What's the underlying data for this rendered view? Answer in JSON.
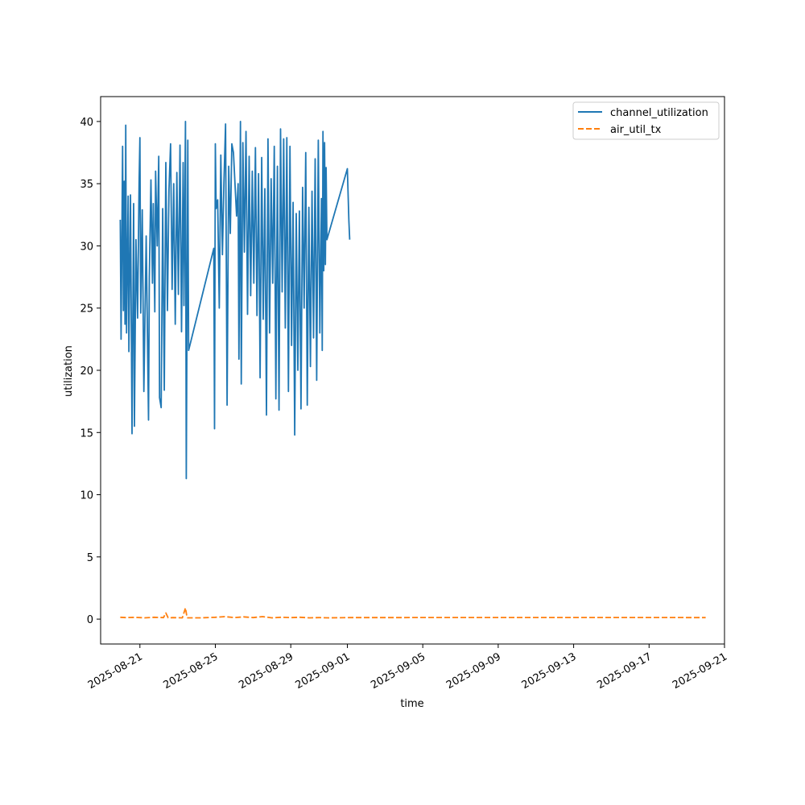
{
  "chart_data": {
    "type": "line",
    "title": "",
    "xlabel": "time",
    "ylabel": "utilization",
    "x_is_date": true,
    "xlim": [
      "2025-08-18T22:00",
      "2025-09-21T00:00"
    ],
    "ylim": [
      -2,
      42
    ],
    "x_ticks": [
      "2025-08-21",
      "2025-08-25",
      "2025-08-29",
      "2025-09-01",
      "2025-09-05",
      "2025-09-09",
      "2025-09-13",
      "2025-09-17",
      "2025-09-21"
    ],
    "y_ticks": [
      "0",
      "5",
      "10",
      "15",
      "20",
      "25",
      "30",
      "35",
      "40"
    ],
    "grid": false,
    "legend_position": "top-right",
    "series": [
      {
        "name": "channel_utilization",
        "color": "#1f77b4",
        "dash": "solid",
        "points": [
          [
            "2025-08-19T23:00",
            32.1
          ],
          [
            "2025-08-20T00:00",
            22.5
          ],
          [
            "2025-08-20T02:00",
            38.0
          ],
          [
            "2025-08-20T03:00",
            24.8
          ],
          [
            "2025-08-20T04:00",
            35.2
          ],
          [
            "2025-08-20T05:00",
            23.7
          ],
          [
            "2025-08-20T06:00",
            39.7
          ],
          [
            "2025-08-20T07:00",
            23.0
          ],
          [
            "2025-08-20T09:00",
            34.0
          ],
          [
            "2025-08-20T10:00",
            21.5
          ],
          [
            "2025-08-20T12:00",
            34.1
          ],
          [
            "2025-08-20T14:00",
            14.9
          ],
          [
            "2025-08-20T16:00",
            33.4
          ],
          [
            "2025-08-20T17:00",
            15.5
          ],
          [
            "2025-08-20T19:00",
            30.5
          ],
          [
            "2025-08-20T21:00",
            24.2
          ],
          [
            "2025-08-20T23:00",
            35.1
          ],
          [
            "2025-08-21T00:00",
            38.7
          ],
          [
            "2025-08-21T01:00",
            24.6
          ],
          [
            "2025-08-21T03:00",
            32.9
          ],
          [
            "2025-08-21T05:00",
            18.3
          ],
          [
            "2025-08-21T08:00",
            30.8
          ],
          [
            "2025-08-21T11:00",
            16.0
          ],
          [
            "2025-08-21T12:00",
            27.5
          ],
          [
            "2025-08-21T14:00",
            35.3
          ],
          [
            "2025-08-21T16:00",
            27.0
          ],
          [
            "2025-08-21T17:00",
            33.4
          ],
          [
            "2025-08-21T19:00",
            24.7
          ],
          [
            "2025-08-21T20:00",
            36.0
          ],
          [
            "2025-08-21T22:00",
            30.0
          ],
          [
            "2025-08-22T00:00",
            37.2
          ],
          [
            "2025-08-22T01:00",
            17.8
          ],
          [
            "2025-08-22T03:00",
            17.0
          ],
          [
            "2025-08-22T05:00",
            33.0
          ],
          [
            "2025-08-22T07:00",
            18.4
          ],
          [
            "2025-08-22T09:00",
            36.7
          ],
          [
            "2025-08-22T11:00",
            24.8
          ],
          [
            "2025-08-22T13:00",
            34.5
          ],
          [
            "2025-08-22T15:00",
            38.2
          ],
          [
            "2025-08-22T17:00",
            26.5
          ],
          [
            "2025-08-22T19:00",
            35.0
          ],
          [
            "2025-08-22T21:00",
            23.7
          ],
          [
            "2025-08-22T23:00",
            35.9
          ],
          [
            "2025-08-23T01:00",
            26.1
          ],
          [
            "2025-08-23T03:00",
            38.1
          ],
          [
            "2025-08-23T05:00",
            23.1
          ],
          [
            "2025-08-23T07:00",
            36.7
          ],
          [
            "2025-08-23T08:00",
            25.2
          ],
          [
            "2025-08-23T10:00",
            40.0
          ],
          [
            "2025-08-23T11:00",
            11.3
          ],
          [
            "2025-08-23T13:00",
            38.5
          ],
          [
            "2025-08-23T14:00",
            21.6
          ],
          [
            "2025-08-24T22:00",
            29.8
          ],
          [
            "2025-08-24T23:00",
            15.3
          ],
          [
            "2025-08-25T00:00",
            38.2
          ],
          [
            "2025-08-25T01:00",
            33.0
          ],
          [
            "2025-08-25T03:00",
            33.7
          ],
          [
            "2025-08-25T05:00",
            25.0
          ],
          [
            "2025-08-25T07:00",
            37.3
          ],
          [
            "2025-08-25T09:00",
            29.3
          ],
          [
            "2025-08-25T11:00",
            35.2
          ],
          [
            "2025-08-25T13:00",
            39.8
          ],
          [
            "2025-08-25T15:00",
            17.2
          ],
          [
            "2025-08-25T17:00",
            36.4
          ],
          [
            "2025-08-25T19:00",
            31.0
          ],
          [
            "2025-08-25T21:00",
            38.2
          ],
          [
            "2025-08-25T23:00",
            37.5
          ],
          [
            "2025-08-26T03:00",
            32.4
          ],
          [
            "2025-08-26T05:00",
            35.0
          ],
          [
            "2025-08-26T06:00",
            20.9
          ],
          [
            "2025-08-26T08:00",
            40.0
          ],
          [
            "2025-08-26T09:00",
            18.9
          ],
          [
            "2025-08-26T11:00",
            38.3
          ],
          [
            "2025-08-26T13:00",
            29.5
          ],
          [
            "2025-08-26T15:00",
            39.2
          ],
          [
            "2025-08-26T17:00",
            24.5
          ],
          [
            "2025-08-26T19:00",
            37.2
          ],
          [
            "2025-08-26T21:00",
            26.0
          ],
          [
            "2025-08-26T23:00",
            36.0
          ],
          [
            "2025-08-27T01:00",
            27.0
          ],
          [
            "2025-08-27T03:00",
            37.9
          ],
          [
            "2025-08-27T05:00",
            24.4
          ],
          [
            "2025-08-27T07:00",
            35.8
          ],
          [
            "2025-08-27T09:00",
            19.4
          ],
          [
            "2025-08-27T11:00",
            37.1
          ],
          [
            "2025-08-27T13:00",
            24.1
          ],
          [
            "2025-08-27T15:00",
            34.6
          ],
          [
            "2025-08-27T17:00",
            16.4
          ],
          [
            "2025-08-27T19:00",
            38.6
          ],
          [
            "2025-08-27T21:00",
            23.0
          ],
          [
            "2025-08-27T23:00",
            35.4
          ],
          [
            "2025-08-28T01:00",
            27.0
          ],
          [
            "2025-08-28T03:00",
            38.0
          ],
          [
            "2025-08-28T05:00",
            17.7
          ],
          [
            "2025-08-28T07:00",
            36.4
          ],
          [
            "2025-08-28T09:00",
            16.8
          ],
          [
            "2025-08-28T11:00",
            39.4
          ],
          [
            "2025-08-28T13:00",
            26.3
          ],
          [
            "2025-08-28T15:00",
            38.6
          ],
          [
            "2025-08-28T17:00",
            23.4
          ],
          [
            "2025-08-28T19:00",
            38.7
          ],
          [
            "2025-08-28T21:00",
            18.3
          ],
          [
            "2025-08-28T23:00",
            38.0
          ],
          [
            "2025-08-29T01:00",
            22.0
          ],
          [
            "2025-08-29T03:00",
            33.5
          ],
          [
            "2025-08-29T05:00",
            14.8
          ],
          [
            "2025-08-29T07:00",
            32.6
          ],
          [
            "2025-08-29T09:00",
            20.0
          ],
          [
            "2025-08-29T11:00",
            32.8
          ],
          [
            "2025-08-29T13:00",
            16.9
          ],
          [
            "2025-08-29T15:00",
            34.7
          ],
          [
            "2025-08-29T17:00",
            25.0
          ],
          [
            "2025-08-29T19:00",
            37.5
          ],
          [
            "2025-08-29T21:00",
            17.2
          ],
          [
            "2025-08-29T23:00",
            33.1
          ],
          [
            "2025-08-30T01:00",
            20.3
          ],
          [
            "2025-08-30T03:00",
            34.4
          ],
          [
            "2025-08-30T05:00",
            22.6
          ],
          [
            "2025-08-30T07:00",
            37.0
          ],
          [
            "2025-08-30T09:00",
            19.2
          ],
          [
            "2025-08-30T11:00",
            38.5
          ],
          [
            "2025-08-30T13:00",
            23.0
          ],
          [
            "2025-08-30T15:00",
            33.8
          ],
          [
            "2025-08-30T16:00",
            21.6
          ],
          [
            "2025-08-30T17:00",
            39.2
          ],
          [
            "2025-08-30T18:00",
            28.0
          ],
          [
            "2025-08-30T19:00",
            38.3
          ],
          [
            "2025-08-30T20:00",
            28.5
          ],
          [
            "2025-08-30T21:00",
            36.3
          ],
          [
            "2025-08-30T22:00",
            30.5
          ],
          [
            "2025-09-01T00:00",
            36.2
          ],
          [
            "2025-09-01T02:00",
            32.0
          ],
          [
            "2025-09-01T03:00",
            30.5
          ]
        ]
      },
      {
        "name": "air_util_tx",
        "color": "#ff7f0e",
        "dash": "dashed",
        "points": [
          [
            "2025-08-19T23:00",
            0.15
          ],
          [
            "2025-08-20T06:00",
            0.12
          ],
          [
            "2025-08-20T18:00",
            0.14
          ],
          [
            "2025-08-21T06:00",
            0.1
          ],
          [
            "2025-08-21T18:00",
            0.15
          ],
          [
            "2025-08-22T06:00",
            0.12
          ],
          [
            "2025-08-22T09:00",
            0.5
          ],
          [
            "2025-08-22T12:00",
            0.1
          ],
          [
            "2025-08-22T18:00",
            0.12
          ],
          [
            "2025-08-23T06:00",
            0.1
          ],
          [
            "2025-08-23T10:00",
            0.9
          ],
          [
            "2025-08-23T12:00",
            0.1
          ],
          [
            "2025-08-24T06:00",
            0.1
          ],
          [
            "2025-08-25T00:00",
            0.15
          ],
          [
            "2025-08-25T12:00",
            0.2
          ],
          [
            "2025-08-26T00:00",
            0.12
          ],
          [
            "2025-08-26T12:00",
            0.18
          ],
          [
            "2025-08-27T00:00",
            0.12
          ],
          [
            "2025-08-27T12:00",
            0.2
          ],
          [
            "2025-08-28T00:00",
            0.1
          ],
          [
            "2025-08-28T12:00",
            0.15
          ],
          [
            "2025-08-29T00:00",
            0.12
          ],
          [
            "2025-08-29T12:00",
            0.15
          ],
          [
            "2025-08-30T00:00",
            0.1
          ],
          [
            "2025-08-30T12:00",
            0.12
          ],
          [
            "2025-08-31T00:00",
            0.1
          ],
          [
            "2025-09-01T03:00",
            0.12
          ],
          [
            "2025-09-09T00:00",
            0.13
          ],
          [
            "2025-09-17T00:00",
            0.13
          ],
          [
            "2025-09-20T00:00",
            0.12
          ]
        ]
      }
    ]
  }
}
